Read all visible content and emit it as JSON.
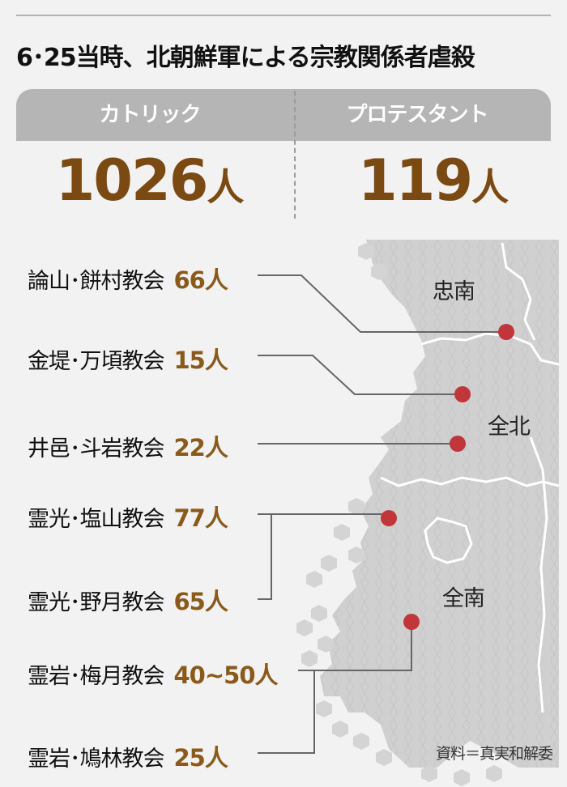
{
  "title": "6･25当時、北朝鮮軍による宗教関係者虐殺",
  "summary": {
    "catholic": {
      "label": "カトリック",
      "value": "1026",
      "unit": "人"
    },
    "protestant": {
      "label": "プロテスタント",
      "value": "119",
      "unit": "人"
    }
  },
  "regions": [
    "忠南",
    "全北",
    "全南"
  ],
  "churches": [
    {
      "name": "論山･餅村教会",
      "count": "66人"
    },
    {
      "name": "金堤･万頃教会",
      "count": "15人"
    },
    {
      "name": "井邑･斗岩教会",
      "count": "22人"
    },
    {
      "name": "霊光･塩山教会",
      "count": "77人"
    },
    {
      "name": "霊光･野月教会",
      "count": "65人"
    },
    {
      "name": "霊岩･梅月教会",
      "count": "40~50人"
    },
    {
      "name": "霊岩･鳩林教会",
      "count": "25人"
    }
  ],
  "source": "資料＝真実和解委",
  "colors": {
    "marker": "#c0363a",
    "count": "#8a5a1c",
    "header": "#b5b5b5",
    "map": "#d0d0d0"
  }
}
